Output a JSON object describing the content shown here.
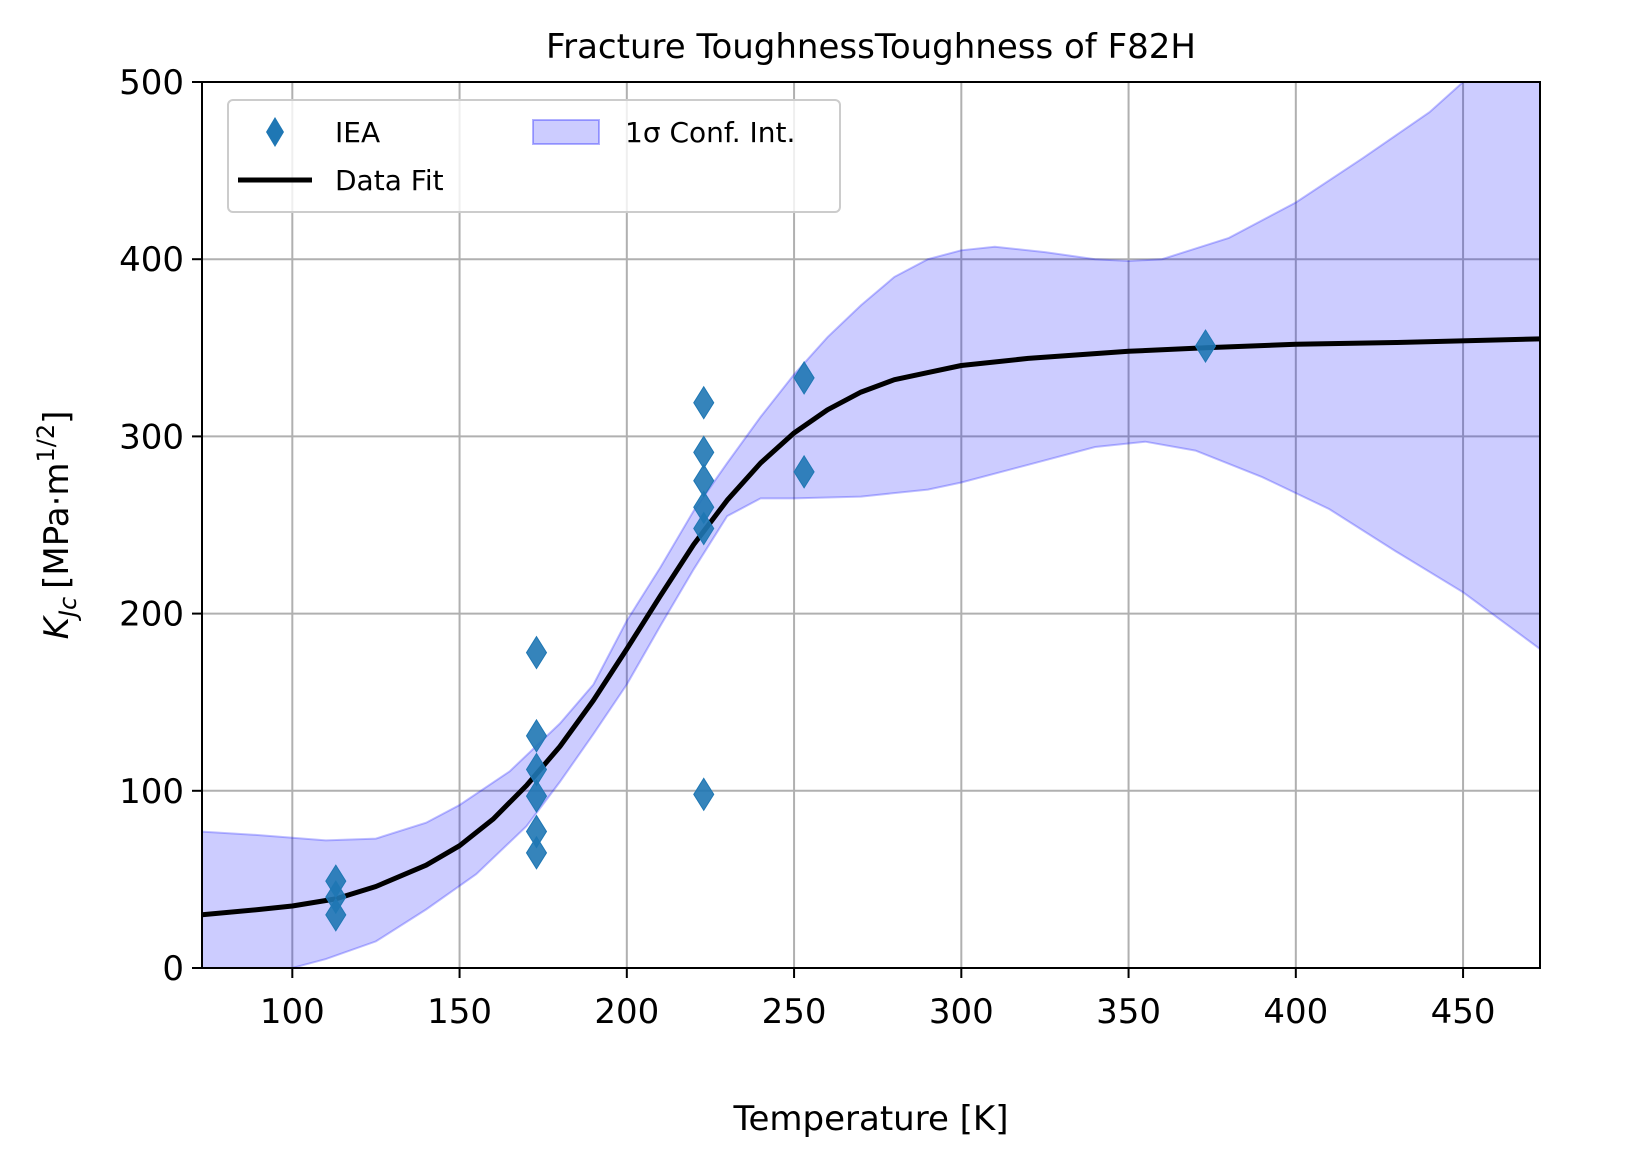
{
  "chart_data": {
    "type": "scatter",
    "title": "Fracture ToughnessToughness of F82H",
    "xlabel": "Temperature [K]",
    "ylabel": {
      "base": "K",
      "sub": "Jc",
      "units": "[MPa·m",
      "sup": "1/2",
      "close": "]"
    },
    "xlim": [
      73,
      473
    ],
    "ylim": [
      0,
      500
    ],
    "x_ticks": [
      100,
      150,
      200,
      250,
      300,
      350,
      400,
      450
    ],
    "y_ticks": [
      0,
      100,
      200,
      300,
      400,
      500
    ],
    "grid": true,
    "legend_position": "top-left",
    "series": [
      {
        "name": "IEA",
        "kind": "scatter",
        "marker": "thin-diamond",
        "color": "#1f77b4",
        "points": [
          [
            113,
            49
          ],
          [
            113,
            40
          ],
          [
            113,
            30
          ],
          [
            173,
            178
          ],
          [
            173,
            131
          ],
          [
            173,
            112
          ],
          [
            173,
            97
          ],
          [
            173,
            77
          ],
          [
            173,
            65
          ],
          [
            223,
            319
          ],
          [
            223,
            291
          ],
          [
            223,
            275
          ],
          [
            223,
            260
          ],
          [
            223,
            248
          ],
          [
            223,
            98
          ],
          [
            253,
            333
          ],
          [
            253,
            280
          ],
          [
            373,
            351
          ]
        ]
      },
      {
        "name": "Data Fit",
        "kind": "line",
        "color": "#000000",
        "points": [
          [
            73,
            30
          ],
          [
            90,
            33
          ],
          [
            100,
            35
          ],
          [
            113,
            39
          ],
          [
            125,
            46
          ],
          [
            140,
            58
          ],
          [
            150,
            69
          ],
          [
            160,
            84
          ],
          [
            170,
            103
          ],
          [
            180,
            125
          ],
          [
            190,
            151
          ],
          [
            200,
            180
          ],
          [
            210,
            210
          ],
          [
            220,
            239
          ],
          [
            230,
            264
          ],
          [
            240,
            285
          ],
          [
            250,
            302
          ],
          [
            260,
            315
          ],
          [
            270,
            325
          ],
          [
            280,
            332
          ],
          [
            290,
            336
          ],
          [
            300,
            340
          ],
          [
            320,
            344
          ],
          [
            350,
            348
          ],
          [
            373,
            350
          ],
          [
            400,
            352
          ],
          [
            430,
            353
          ],
          [
            473,
            355
          ]
        ]
      },
      {
        "name": "1σ Conf. Int.",
        "kind": "band",
        "color": "#0000ff",
        "fill_opacity": 0.2,
        "upper": [
          [
            73,
            77
          ],
          [
            90,
            75
          ],
          [
            110,
            72
          ],
          [
            125,
            73
          ],
          [
            140,
            82
          ],
          [
            150,
            92
          ],
          [
            165,
            111
          ],
          [
            180,
            138
          ],
          [
            190,
            160
          ],
          [
            200,
            196
          ],
          [
            210,
            226
          ],
          [
            220,
            258
          ],
          [
            230,
            285
          ],
          [
            240,
            311
          ],
          [
            250,
            335
          ],
          [
            260,
            356
          ],
          [
            270,
            374
          ],
          [
            280,
            390
          ],
          [
            290,
            400
          ],
          [
            300,
            405
          ],
          [
            310,
            407
          ],
          [
            325,
            404
          ],
          [
            340,
            400
          ],
          [
            350,
            399
          ],
          [
            360,
            400
          ],
          [
            380,
            412
          ],
          [
            400,
            432
          ],
          [
            420,
            457
          ],
          [
            440,
            483
          ],
          [
            450,
            500
          ],
          [
            473,
            500
          ]
        ],
        "lower": [
          [
            73,
            0
          ],
          [
            100,
            0
          ],
          [
            110,
            5
          ],
          [
            125,
            15
          ],
          [
            140,
            33
          ],
          [
            155,
            53
          ],
          [
            170,
            80
          ],
          [
            180,
            105
          ],
          [
            190,
            132
          ],
          [
            200,
            160
          ],
          [
            210,
            193
          ],
          [
            220,
            225
          ],
          [
            230,
            255
          ],
          [
            240,
            265
          ],
          [
            250,
            265
          ],
          [
            270,
            266
          ],
          [
            290,
            270
          ],
          [
            300,
            274
          ],
          [
            320,
            284
          ],
          [
            340,
            294
          ],
          [
            355,
            297
          ],
          [
            370,
            292
          ],
          [
            390,
            277
          ],
          [
            410,
            259
          ],
          [
            430,
            235
          ],
          [
            450,
            212
          ],
          [
            473,
            180
          ]
        ]
      }
    ]
  }
}
